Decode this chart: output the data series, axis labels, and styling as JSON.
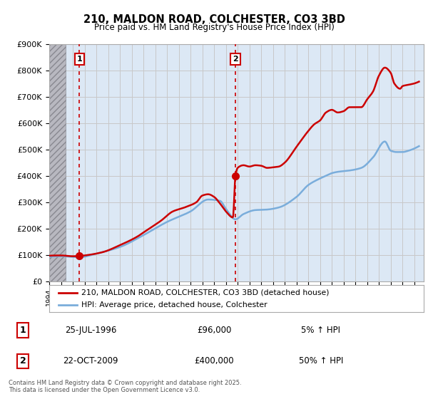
{
  "title": "210, MALDON ROAD, COLCHESTER, CO3 3BD",
  "subtitle": "Price paid vs. HM Land Registry's House Price Index (HPI)",
  "ylim": [
    0,
    900000
  ],
  "yticks": [
    0,
    100000,
    200000,
    300000,
    400000,
    500000,
    600000,
    700000,
    800000,
    900000
  ],
  "ytick_labels": [
    "£0",
    "£100K",
    "£200K",
    "£300K",
    "£400K",
    "£500K",
    "£600K",
    "£700K",
    "£800K",
    "£900K"
  ],
  "xlim_start": 1994.0,
  "xlim_end": 2025.8,
  "hatch_end": 1995.4,
  "sale1_x": 1996.56,
  "sale1_y": 96000,
  "sale2_x": 2009.81,
  "sale2_y": 400000,
  "legend_line1": "210, MALDON ROAD, COLCHESTER, CO3 3BD (detached house)",
  "legend_line2": "HPI: Average price, detached house, Colchester",
  "table_row1": [
    "1",
    "25-JUL-1996",
    "£96,000",
    "5% ↑ HPI"
  ],
  "table_row2": [
    "2",
    "22-OCT-2009",
    "£400,000",
    "50% ↑ HPI"
  ],
  "footer": "Contains HM Land Registry data © Crown copyright and database right 2025.\nThis data is licensed under the Open Government Licence v3.0.",
  "red_color": "#cc0000",
  "blue_color": "#7aaddb",
  "grid_color": "#c8c8c8",
  "plot_bg_color": "#dce8f5",
  "hatch_bg_color": "#c8c8cc"
}
